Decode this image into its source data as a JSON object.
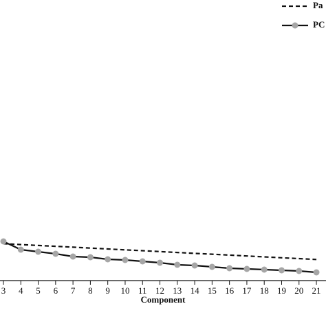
{
  "chart_data": {
    "type": "line",
    "x_label": "Component",
    "categories": [
      "3",
      "4",
      "5",
      "6",
      "7",
      "8",
      "9",
      "10",
      "11",
      "12",
      "13",
      "14",
      "15",
      "16",
      "17",
      "18",
      "19",
      "20",
      "21"
    ],
    "ylim": [
      0,
      400
    ],
    "series": [
      {
        "name": "Pa",
        "color": "#111111",
        "dash": true,
        "marker": false,
        "values": [
          53.7,
          52.4,
          51.1,
          49.9,
          48.6,
          47.3,
          46.0,
          44.7,
          43.5,
          42.2,
          40.9,
          39.6,
          38.4,
          37.1,
          35.8,
          34.5,
          33.2,
          32.0,
          30.7
        ]
      },
      {
        "name": "PC",
        "color": "#111111",
        "dash": false,
        "marker": true,
        "marker_color": "#a6a6a6",
        "values": [
          57,
          45,
          42,
          39,
          35,
          34,
          31,
          30,
          28,
          26,
          23,
          22,
          20,
          18,
          17,
          16,
          15,
          14,
          12
        ]
      }
    ]
  }
}
